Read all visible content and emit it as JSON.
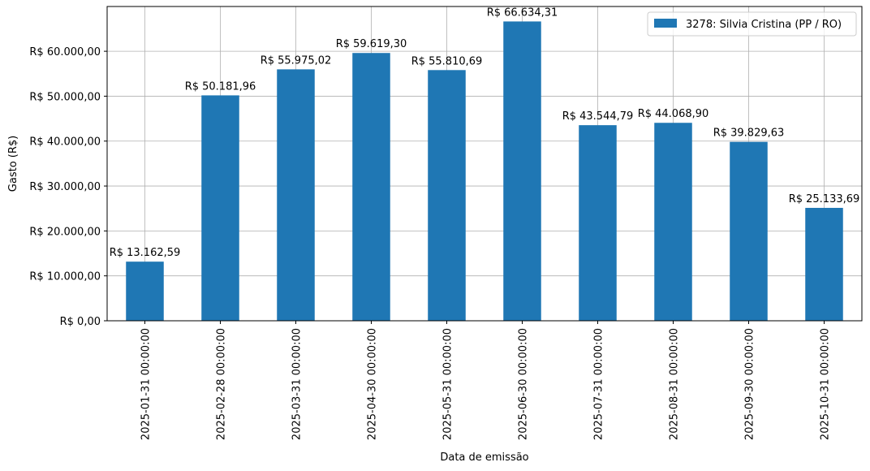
{
  "chart_data": {
    "type": "bar",
    "categories": [
      "2025-01-31 00:00:00",
      "2025-02-28 00:00:00",
      "2025-03-31 00:00:00",
      "2025-04-30 00:00:00",
      "2025-05-31 00:00:00",
      "2025-06-30 00:00:00",
      "2025-07-31 00:00:00",
      "2025-08-31 00:00:00",
      "2025-09-30 00:00:00",
      "2025-10-31 00:00:00"
    ],
    "series": [
      {
        "name": "3278: Silvia Cristina (PP / RO)",
        "values": [
          13162.59,
          50181.96,
          55975.02,
          59619.3,
          55810.69,
          66634.31,
          43544.79,
          44068.9,
          39829.63,
          25133.69
        ],
        "data_labels": [
          "R$ 13.162,59",
          "R$ 50.181,96",
          "R$ 55.975,02",
          "R$ 59.619,30",
          "R$ 55.810,69",
          "R$ 66.634,31",
          "R$ 43.544,79",
          "R$ 44.068,90",
          "R$ 39.829,63",
          "R$ 25.133,69"
        ],
        "color": "#1f77b4"
      }
    ],
    "title": "",
    "xlabel": "Data de emissão",
    "ylabel": "Gasto (R$)",
    "ylim": [
      0,
      69966
    ],
    "yticks": [
      0,
      10000,
      20000,
      30000,
      40000,
      50000,
      60000
    ],
    "ytick_labels": [
      "R$ 0,00",
      "R$ 10.000,00",
      "R$ 20.000,00",
      "R$ 30.000,00",
      "R$ 40.000,00",
      "R$ 50.000,00",
      "R$ 60.000,00"
    ],
    "grid": true,
    "legend_position": "top-right"
  }
}
